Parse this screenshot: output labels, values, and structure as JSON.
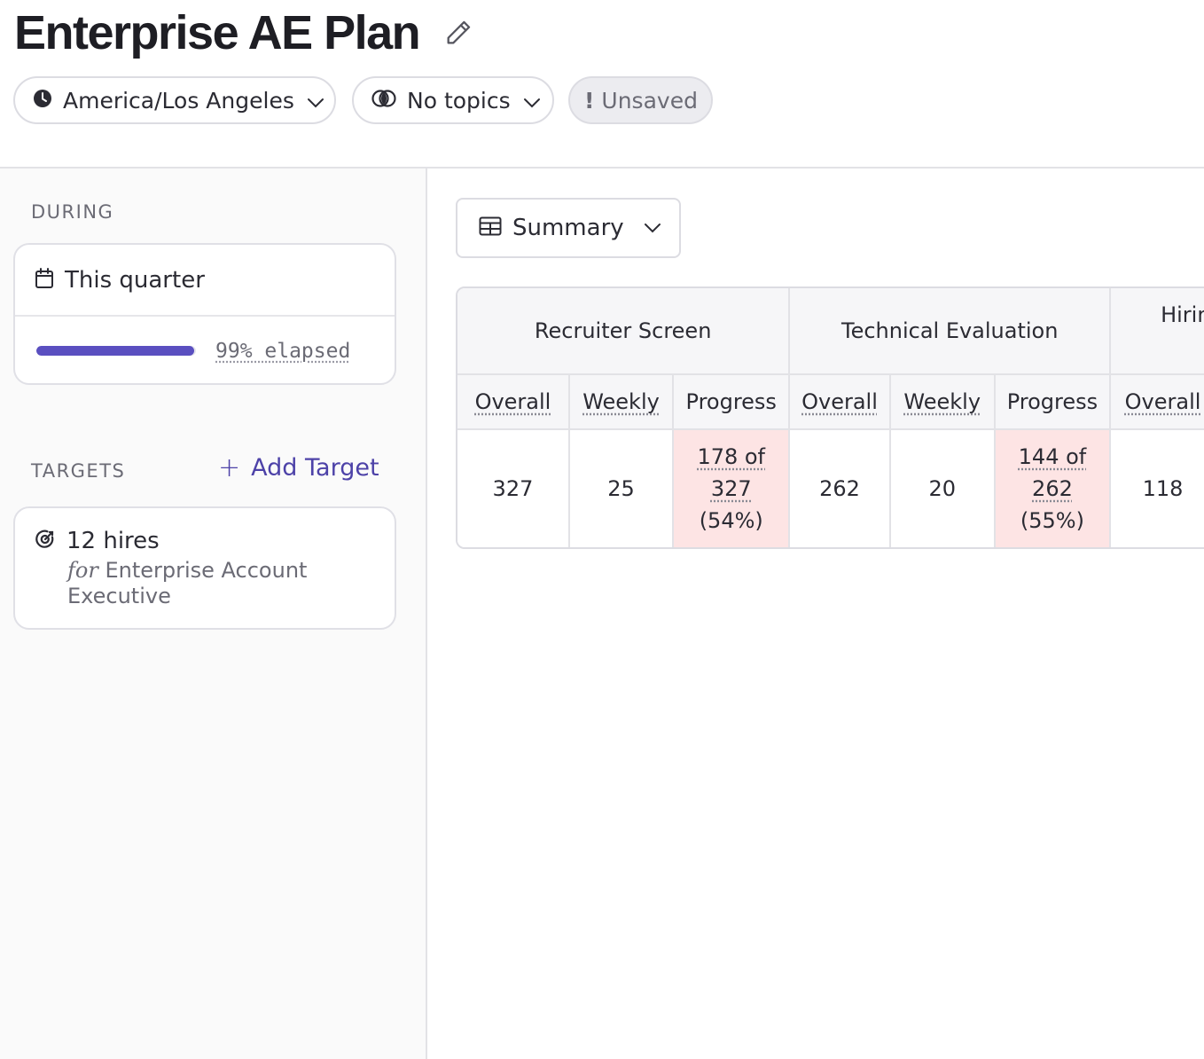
{
  "header": {
    "title": "Enterprise AE Plan",
    "timezone": "America/Los Angeles",
    "topics": "No topics",
    "status": "Unsaved"
  },
  "sidebar": {
    "during_label": "DURING",
    "period": "This quarter",
    "elapsed_fraction": 0.99,
    "elapsed_text": "99% elapsed",
    "targets_label": "TARGETS",
    "add_target": "Add Target",
    "target": {
      "title": "12 hires",
      "for_word": "for",
      "role": "Enterprise Account Executive"
    }
  },
  "main": {
    "view": "Summary",
    "groups": [
      "Recruiter Screen",
      "Technical Evaluation",
      "Hirin"
    ],
    "columns": [
      "Overall",
      "Weekly",
      "Progress",
      "Overall",
      "Weekly",
      "Progress",
      "Overall"
    ],
    "row": {
      "rs_overall": "327",
      "rs_weekly": "25",
      "rs_progress_a": "178 of",
      "rs_progress_b": "327",
      "rs_progress_pct": "(54%)",
      "te_overall": "262",
      "te_weekly": "20",
      "te_progress_a": "144 of",
      "te_progress_b": "262",
      "te_progress_pct": "(55%)",
      "h_overall": "118"
    }
  },
  "colors": {
    "accent": "#5a4fc0",
    "link": "#4d42a8",
    "progress_cell_bg": "#fde4e4"
  },
  "icons": [
    "pencil-icon",
    "clock-icon",
    "chevron-down-icon",
    "topics-icon",
    "calendar-icon",
    "plus-icon",
    "target-icon",
    "table-icon"
  ]
}
